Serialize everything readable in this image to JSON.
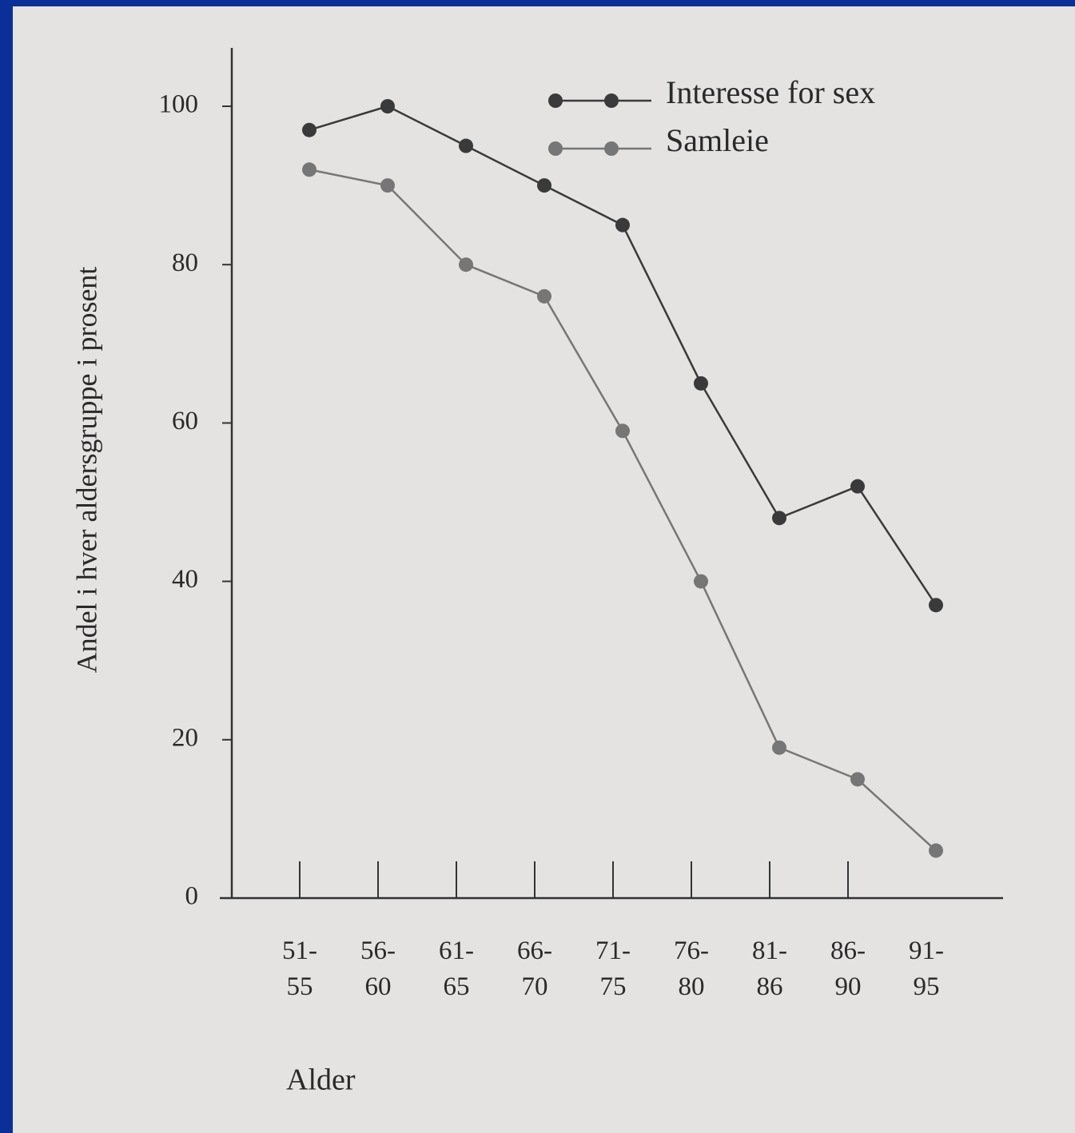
{
  "chart_data": {
    "type": "line",
    "categories": [
      "51-\n55",
      "56-\n60",
      "61-\n65",
      "66-\n70",
      "71-\n75",
      "76-\n80",
      "81-\n86",
      "86-\n90",
      "91-\n95"
    ],
    "series": [
      {
        "name": "Interesse for sex",
        "color": "#3a3a3a",
        "values": [
          97,
          100,
          95,
          90,
          85,
          65,
          48,
          52,
          37
        ]
      },
      {
        "name": "Samleie",
        "color": "#767676",
        "values": [
          92,
          90,
          80,
          76,
          59,
          40,
          19,
          15,
          6
        ]
      }
    ],
    "ylabel": "Andel i hver aldersgruppe i prosent",
    "xlabel": "Alder",
    "ylim": [
      0,
      100
    ],
    "yticks": [
      0,
      20,
      40,
      60,
      80,
      100
    ],
    "legend": "upper right"
  }
}
